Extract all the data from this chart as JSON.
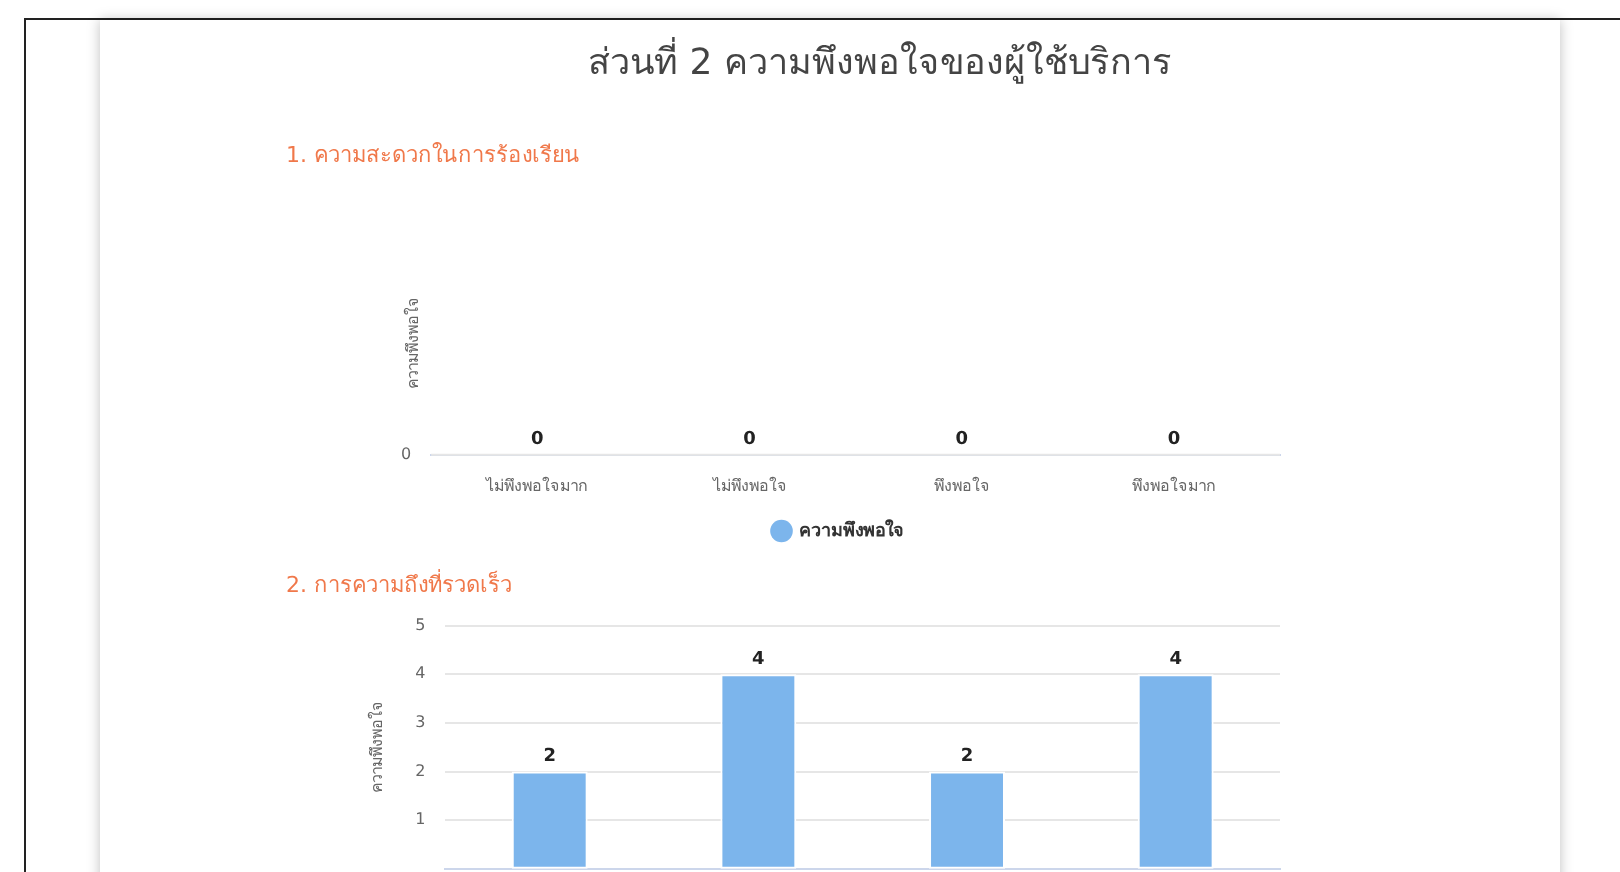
{
  "chart_data": [
    {
      "type": "other",
      "title": "ส่วนที่ 2 ความพึงพอใจของผู้ใช้บริการ",
      "subtitle": "1. ความสะดวกในการร้องเรียน",
      "ylabel": "ความพึงพอใจ",
      "categories": [
        "ไม่พึงพอใจมาก",
        "ไม่พึงพอใจ",
        "พึงพอใจ",
        "พึงพอใจมาก"
      ],
      "series": [
        {
          "name": "ความพึงพอใจ",
          "color": "#7cb5ec",
          "values": [
            0,
            0,
            0,
            0
          ]
        }
      ],
      "annotations": [
        "0"
      ],
      "legend": "bottom",
      "data_labels": true
    },
    {
      "type": "bar",
      "title": "2. การความถึงที่รวดเร็ว",
      "ylabel": "ความพึงพอใจ",
      "categories": [
        null,
        null,
        null,
        null
      ],
      "series": [
        {
          "color": "#7cb5ec",
          "values": [
            2,
            4,
            2,
            4
          ]
        }
      ],
      "ylim": [
        0,
        5
      ],
      "yticks": [
        1,
        2,
        3,
        4,
        5
      ],
      "grid": "y",
      "data_labels": true
    }
  ]
}
